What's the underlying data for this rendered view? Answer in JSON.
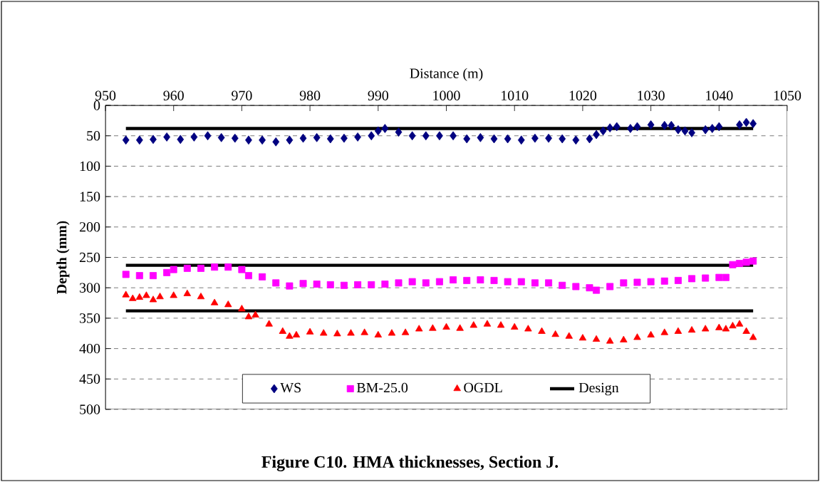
{
  "chart_data": {
    "type": "scatter",
    "title": "Figure C10. HMA thicknesses, Section J.",
    "xlabel": "Distance (m)",
    "ylabel": "Depth (mm)",
    "xlim": [
      950,
      1050
    ],
    "xticks": [
      950,
      960,
      970,
      980,
      990,
      1000,
      1010,
      1020,
      1030,
      1040,
      1050
    ],
    "ylim": [
      500,
      0
    ],
    "yticks": [
      0,
      50,
      100,
      150,
      200,
      250,
      300,
      350,
      400,
      450,
      500
    ],
    "grid": "y",
    "legend": "bottom",
    "series": [
      {
        "name": "WS",
        "color": "#000080",
        "marker": "diamond",
        "x": [
          953,
          955,
          957,
          959,
          961,
          963,
          965,
          967,
          969,
          971,
          973,
          975,
          977,
          979,
          981,
          983,
          985,
          987,
          989,
          990,
          991,
          993,
          995,
          997,
          999,
          1001,
          1003,
          1005,
          1007,
          1009,
          1011,
          1013,
          1015,
          1017,
          1019,
          1021,
          1022,
          1023,
          1024,
          1025,
          1027,
          1028,
          1030,
          1032,
          1033,
          1034,
          1035,
          1036,
          1038,
          1039,
          1040,
          1043,
          1044,
          1045
        ],
        "values": [
          57,
          57,
          56,
          52,
          56,
          52,
          50,
          53,
          54,
          57,
          57,
          60,
          57,
          54,
          53,
          55,
          54,
          52,
          50,
          42,
          38,
          44,
          50,
          50,
          50,
          50,
          55,
          53,
          55,
          55,
          57,
          54,
          54,
          55,
          57,
          55,
          48,
          42,
          37,
          35,
          38,
          35,
          32,
          33,
          33,
          40,
          42,
          45,
          40,
          38,
          35,
          32,
          28,
          30
        ]
      },
      {
        "name": "BM-25.0",
        "color": "#ff00ff",
        "marker": "square",
        "x": [
          953,
          955,
          957,
          959,
          960,
          962,
          964,
          966,
          968,
          970,
          971,
          973,
          975,
          977,
          979,
          981,
          983,
          985,
          987,
          989,
          991,
          993,
          995,
          997,
          999,
          1001,
          1003,
          1005,
          1007,
          1009,
          1011,
          1013,
          1015,
          1017,
          1019,
          1021,
          1022,
          1024,
          1026,
          1028,
          1030,
          1032,
          1034,
          1036,
          1038,
          1040,
          1041,
          1042,
          1043,
          1044,
          1045
        ],
        "values": [
          278,
          280,
          280,
          275,
          270,
          268,
          268,
          266,
          266,
          270,
          280,
          282,
          292,
          297,
          293,
          294,
          295,
          296,
          295,
          295,
          294,
          292,
          290,
          292,
          290,
          287,
          288,
          287,
          288,
          290,
          290,
          292,
          292,
          296,
          298,
          300,
          304,
          298,
          292,
          291,
          290,
          289,
          288,
          285,
          284,
          283,
          283,
          262,
          260,
          258,
          256
        ]
      },
      {
        "name": "OGDL",
        "color": "#ff0000",
        "marker": "triangle",
        "x": [
          953,
          954,
          955,
          956,
          957,
          958,
          960,
          962,
          964,
          966,
          968,
          970,
          971,
          972,
          974,
          976,
          977,
          978,
          980,
          982,
          984,
          986,
          988,
          990,
          992,
          994,
          996,
          998,
          1000,
          1002,
          1004,
          1006,
          1008,
          1010,
          1012,
          1014,
          1016,
          1018,
          1020,
          1022,
          1024,
          1026,
          1028,
          1030,
          1032,
          1034,
          1036,
          1038,
          1040,
          1041,
          1042,
          1043,
          1044,
          1045
        ],
        "values": [
          312,
          318,
          316,
          313,
          320,
          315,
          313,
          310,
          315,
          325,
          328,
          335,
          348,
          345,
          360,
          372,
          380,
          378,
          373,
          375,
          376,
          375,
          374,
          378,
          375,
          374,
          368,
          367,
          365,
          367,
          362,
          360,
          362,
          365,
          368,
          372,
          377,
          380,
          383,
          385,
          388,
          386,
          382,
          378,
          374,
          372,
          370,
          368,
          366,
          368,
          363,
          360,
          372,
          382
        ]
      },
      {
        "name": "Design",
        "type": "line",
        "color": "#000000",
        "marker": "none",
        "line_style": "solid",
        "x": [
          953,
          1045
        ],
        "values": [
          38,
          38
        ]
      },
      {
        "type": "line",
        "color": "#000000",
        "marker": "none",
        "line_style": "solid",
        "x": [
          953,
          1045
        ],
        "values": [
          263,
          263
        ]
      },
      {
        "type": "line",
        "color": "#000000",
        "marker": "none",
        "line_style": "solid",
        "x": [
          953,
          1045
        ],
        "values": [
          338,
          338
        ]
      }
    ]
  }
}
